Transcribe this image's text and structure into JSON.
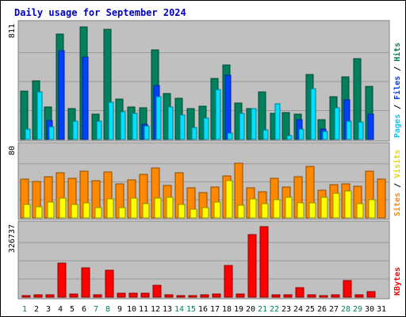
{
  "chart_data": {
    "type": "bar",
    "title": "Daily usage for September 2024",
    "x": [
      "1",
      "2",
      "3",
      "4",
      "5",
      "6",
      "7",
      "8",
      "9",
      "10",
      "11",
      "12",
      "13",
      "14",
      "15",
      "16",
      "17",
      "18",
      "19",
      "20",
      "21",
      "22",
      "23",
      "24",
      "25",
      "26",
      "27",
      "28",
      "29",
      "30",
      "31"
    ],
    "weekend_days": [
      "1",
      "7",
      "8",
      "14",
      "15",
      "21",
      "22",
      "28",
      "29"
    ],
    "panels": [
      {
        "name": "hits-files-pages",
        "max_label": "811",
        "ymax": 811,
        "right_labels": [
          "Pages",
          "Files",
          "Hits"
        ],
        "series": [
          {
            "name": "Hits",
            "color": "#00805c",
            "values": [
              340,
              410,
              230,
              740,
              215,
              790,
              180,
              770,
              285,
              225,
              220,
              625,
              320,
              290,
              215,
              235,
              425,
              520,
              255,
              215,
              335,
              185,
              190,
              180,
              455,
              140,
              300,
              440,
              565,
              370,
              0
            ]
          },
          {
            "name": "Files",
            "color": "#0040ff",
            "values": [
              0,
              0,
              135,
              620,
              0,
              580,
              0,
              0,
              0,
              0,
              105,
              380,
              0,
              0,
              0,
              0,
              0,
              450,
              0,
              0,
              0,
              0,
              0,
              140,
              0,
              70,
              0,
              275,
              0,
              180,
              0
            ]
          },
          {
            "name": "Pages",
            "color": "#00e0ff",
            "values": [
              70,
              335,
              90,
              0,
              125,
              0,
              125,
              260,
              195,
              185,
              95,
              300,
              225,
              170,
              85,
              150,
              350,
              45,
              185,
              215,
              65,
              250,
              30,
              70,
              355,
              55,
              220,
              130,
              120,
              0,
              0
            ]
          }
        ]
      },
      {
        "name": "visits-sites",
        "max_label": "80",
        "ymax": 80,
        "right_labels": [
          "Sites",
          "Visits"
        ],
        "series": [
          {
            "name": "Sites",
            "color": "#ff8800",
            "values": [
              43,
              40,
              46,
              50,
              44,
              52,
              41,
              51,
              38,
              42,
              48,
              55,
              36,
              50,
              33,
              28,
              34,
              47,
              61,
              33,
              29,
              44,
              34,
              46,
              57,
              31,
              37,
              38,
              35,
              52,
              43
            ]
          },
          {
            "name": "Visits",
            "color": "#ffff00",
            "values": [
              15,
              12,
              18,
              22,
              15,
              17,
              11,
              21,
              11,
              22,
              16,
              22,
              23,
              15,
              10,
              11,
              18,
              41,
              14,
              21,
              16,
              20,
              23,
              17,
              17,
              23,
              27,
              30,
              16,
              20,
              0
            ]
          }
        ]
      },
      {
        "name": "kbytes",
        "max_label": "326737",
        "ymax": 326737,
        "right_labels": [
          "KBytes"
        ],
        "series": [
          {
            "name": "KBytes",
            "color": "#ff0000",
            "values": [
              8000,
              10000,
              12000,
              152000,
              14000,
              132000,
              10000,
              120000,
              18000,
              16000,
              16000,
              52000,
              10000,
              8000,
              6000,
              10000,
              14000,
              142000,
              14000,
              280000,
              316000,
              12000,
              10000,
              44000,
              12000,
              8000,
              12000,
              76000,
              12000,
              24000,
              0
            ]
          }
        ]
      }
    ]
  }
}
